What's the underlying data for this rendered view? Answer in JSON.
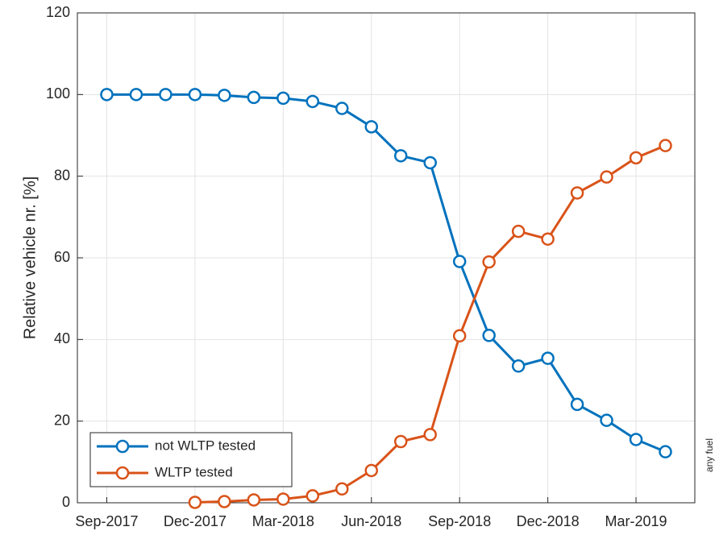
{
  "chart_data": {
    "type": "line",
    "ylabel": "Relative vehicle nr. [%]",
    "annotation": "any fuel",
    "categories": [
      "Sep-2017",
      null,
      null,
      "Dec-2017",
      null,
      null,
      "Mar-2018",
      null,
      null,
      "Jun-2018",
      null,
      null,
      "Sep-2018",
      null,
      null,
      "Dec-2018",
      null,
      null,
      "Mar-2019",
      null
    ],
    "series": [
      {
        "name": "not WLTP tested",
        "color": "#0072bd",
        "values": [
          100,
          100,
          100,
          100,
          99.8,
          99.3,
          99.1,
          98.3,
          96.6,
          92.1,
          85,
          83.3,
          59.1,
          41,
          33.5,
          35.4,
          24.1,
          20.2,
          15.5,
          12.5
        ]
      },
      {
        "name": "WLTP tested",
        "color": "#d95319",
        "values": [
          null,
          null,
          null,
          0.1,
          0.3,
          0.7,
          0.9,
          1.7,
          3.4,
          7.9,
          15,
          16.7,
          40.9,
          59,
          66.5,
          64.6,
          75.9,
          79.8,
          84.5,
          87.5
        ]
      }
    ],
    "ylim": [
      0,
      120
    ],
    "yticks": [
      0,
      20,
      40,
      60,
      80,
      100,
      120
    ],
    "grid": true,
    "legend": "lower left"
  }
}
